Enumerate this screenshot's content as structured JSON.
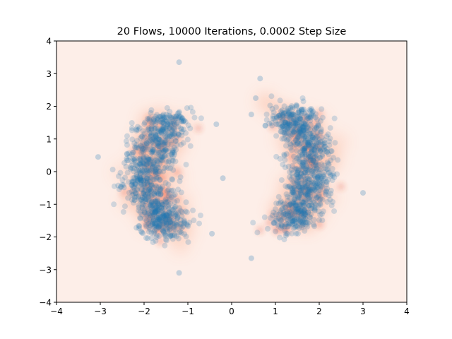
{
  "chart_data": {
    "type": "scatter",
    "title": "20 Flows, 10000 Iterations, 0.0002 Step Size",
    "xlabel": "",
    "ylabel": "",
    "xlim": [
      -4,
      4
    ],
    "ylim": [
      -4,
      4
    ],
    "xticks": [
      -4,
      -3,
      -2,
      -1,
      0,
      1,
      2,
      3,
      4
    ],
    "yticks": [
      -4,
      -3,
      -2,
      -1,
      0,
      1,
      2,
      3,
      4
    ],
    "xtick_labels": [
      "−4",
      "−3",
      "−2",
      "−1",
      "0",
      "1",
      "2",
      "3",
      "4"
    ],
    "ytick_labels": [
      "−4",
      "−3",
      "−2",
      "−1",
      "0",
      "1",
      "2",
      "3",
      "4"
    ],
    "grid": false,
    "background": "density heatmap",
    "colors": {
      "background_density_low": "#fdeee8",
      "density_mid": "#fcbba1",
      "density_high": "#e2442f",
      "points": "#1f77b4"
    },
    "clusters": [
      {
        "name": "left crescent",
        "center": [
          -1.9,
          -0.1
        ],
        "x_range": [
          -3.1,
          -0.4
        ],
        "y_range": [
          -3.1,
          3.4
        ],
        "opening": "right"
      },
      {
        "name": "right crescent",
        "center": [
          1.8,
          0.1
        ],
        "x_range": [
          0.4,
          3.0
        ],
        "y_range": [
          -2.7,
          2.8
        ],
        "opening": "left"
      }
    ],
    "notable_points": [
      [
        -1.2,
        3.35
      ],
      [
        -1.2,
        -3.1
      ],
      [
        -3.05,
        0.45
      ],
      [
        -0.35,
        1.45
      ],
      [
        -0.2,
        -0.2
      ],
      [
        -0.45,
        -1.9
      ],
      [
        0.45,
        -2.65
      ],
      [
        0.65,
        2.85
      ],
      [
        3.0,
        -0.65
      ],
      [
        0.45,
        1.75
      ],
      [
        0.55,
        2.25
      ]
    ]
  }
}
